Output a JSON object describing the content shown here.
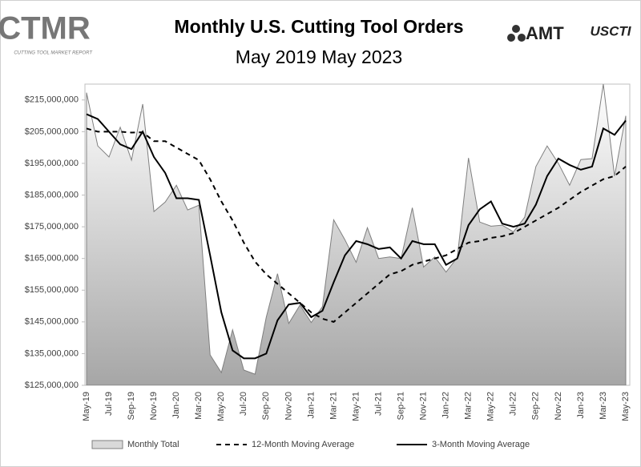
{
  "chart_data": {
    "type": "line",
    "title": "Monthly U.S. Cutting Tool Orders",
    "subtitle": "May 2019 May 2023",
    "categories": [
      "May-19",
      null,
      "Jul-19",
      null,
      "Sep-19",
      null,
      "Nov-19",
      null,
      "Jan-20",
      null,
      "Mar-20",
      null,
      "May-20",
      null,
      "Jul-20",
      null,
      "Sep-20",
      null,
      "Nov-20",
      null,
      "Jan-21",
      null,
      "Mar-21",
      null,
      "May-21",
      null,
      "Jul-21",
      null,
      "Sep-21",
      null,
      "Nov-21",
      null,
      "Jan-22",
      null,
      "Mar-22",
      null,
      "May-22",
      null,
      "Jul-22",
      null,
      "Sep-22",
      null,
      "Nov-22",
      null,
      "Jan-23",
      null,
      "Mar-23",
      null,
      "May-23"
    ],
    "series": [
      {
        "name": "Monthly Total",
        "kind": "area",
        "color": "#a6a6a6",
        "values": [
          217300000,
          200500000,
          197000000,
          206400000,
          196000000,
          213700000,
          179800000,
          182800000,
          188100000,
          180300000,
          181800000,
          134600000,
          129000000,
          142500000,
          129800000,
          128500000,
          146500000,
          160200000,
          144500000,
          150300000,
          144800000,
          149800000,
          177200000,
          170900000,
          163800000,
          174700000,
          165000000,
          165500000,
          165000000,
          181000000,
          162300000,
          165500000,
          160700000,
          165300000,
          196700000,
          176500000,
          175200000,
          175500000,
          173400000,
          178000000,
          194000000,
          200500000,
          195000000,
          188100000,
          196200000,
          196500000,
          220000000,
          191000000,
          210000000
        ]
      },
      {
        "name": "12-Month Moving Average",
        "kind": "dashed",
        "color": "#000000",
        "values": [
          206000000,
          205000000,
          205000000,
          205000000,
          204700000,
          204800000,
          202000000,
          202000000,
          200000000,
          198000000,
          196000000,
          190000000,
          183000000,
          177000000,
          170000000,
          164000000,
          160000000,
          157000000,
          154000000,
          151000000,
          148000000,
          146000000,
          145000000,
          148000000,
          151000000,
          154000000,
          157000000,
          160000000,
          161000000,
          163000000,
          164000000,
          165000000,
          166000000,
          168000000,
          170000000,
          170500000,
          171500000,
          172000000,
          173000000,
          175000000,
          177000000,
          179000000,
          181000000,
          183500000,
          186000000,
          188000000,
          190000000,
          191000000,
          194000000
        ]
      },
      {
        "name": "3-Month Moving Average",
        "kind": "solid",
        "color": "#000000",
        "values": [
          210500000,
          209000000,
          205000000,
          201000000,
          199500000,
          205000000,
          197000000,
          192000000,
          184000000,
          184000000,
          183500000,
          166000000,
          148000000,
          136000000,
          133500000,
          133500000,
          135000000,
          145500000,
          150500000,
          151000000,
          146500000,
          148500000,
          157500000,
          166000000,
          170500000,
          169500000,
          168000000,
          168500000,
          165000000,
          170500000,
          169500000,
          169500000,
          163000000,
          165000000,
          175500000,
          180500000,
          183000000,
          176000000,
          175000000,
          176000000,
          182000000,
          191000000,
          196500000,
          194500000,
          193000000,
          194000000,
          206000000,
          204000000,
          208500000
        ]
      }
    ],
    "ylim": [
      125000000,
      220000000
    ],
    "yticks": [
      {
        "value": 125000000,
        "label": "$125,000,000"
      },
      {
        "value": 135000000,
        "label": "$135,000,000"
      },
      {
        "value": 145000000,
        "label": "$145,000,000"
      },
      {
        "value": 155000000,
        "label": "$155,000,000"
      },
      {
        "value": 165000000,
        "label": "$165,000,000"
      },
      {
        "value": 175000000,
        "label": "$175,000,000"
      },
      {
        "value": 185000000,
        "label": "$185,000,000"
      },
      {
        "value": 195000000,
        "label": "$195,000,000"
      },
      {
        "value": 205000000,
        "label": "$205,000,000"
      },
      {
        "value": 215000000,
        "label": "$215,000,000"
      }
    ],
    "grid": false,
    "legend": "bottom"
  },
  "logos": {
    "ctmr": "CTMR",
    "ctmr_sub": "CUTTING TOOL MARKET REPORT",
    "amt": "AMT",
    "uscti": "USCTI"
  }
}
